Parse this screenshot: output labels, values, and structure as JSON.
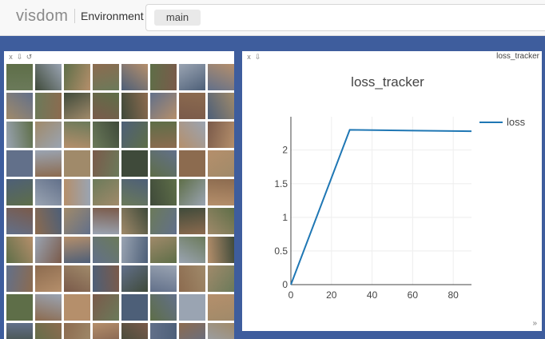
{
  "app": {
    "logo": "visdom"
  },
  "environment": {
    "label": "Environment",
    "selected": "main"
  },
  "image_pane": {
    "close_label": "x",
    "download_label": "⇩",
    "reset_label": "↺",
    "image_grid": {
      "rows": 10,
      "cols": 8
    }
  },
  "plot_pane": {
    "close_label": "x",
    "download_label": "⇩",
    "title": "loss_tracker",
    "resize_label": "»"
  },
  "chart_data": {
    "type": "line",
    "title": "loss_tracker",
    "series": [
      {
        "name": "loss",
        "color": "#1f77b4",
        "x": [
          0,
          29,
          89
        ],
        "y": [
          0,
          2.3,
          2.28
        ]
      }
    ],
    "xlim": [
      0,
      89
    ],
    "ylim": [
      0,
      2.4
    ],
    "xticks": [
      0,
      20,
      40,
      60,
      80
    ],
    "yticks": [
      0,
      0.5,
      1,
      1.5,
      2
    ],
    "ytick_labels": [
      "0",
      "0.5",
      "1",
      "1.5",
      "2"
    ],
    "grid": true,
    "legend_position": "right"
  }
}
